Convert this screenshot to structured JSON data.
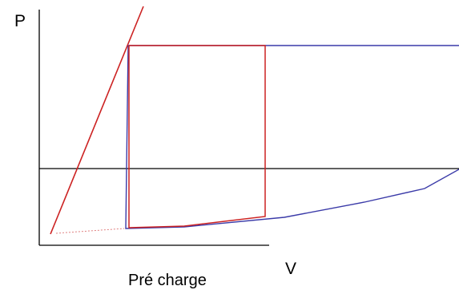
{
  "axes": {
    "y_label": "P",
    "x_label": "V"
  },
  "caption": "Pré charge",
  "colors": {
    "axis": "#000000",
    "red_loop": "#cc2222",
    "blue_loop": "#3a3aa8",
    "dotted": "#e08080"
  }
}
